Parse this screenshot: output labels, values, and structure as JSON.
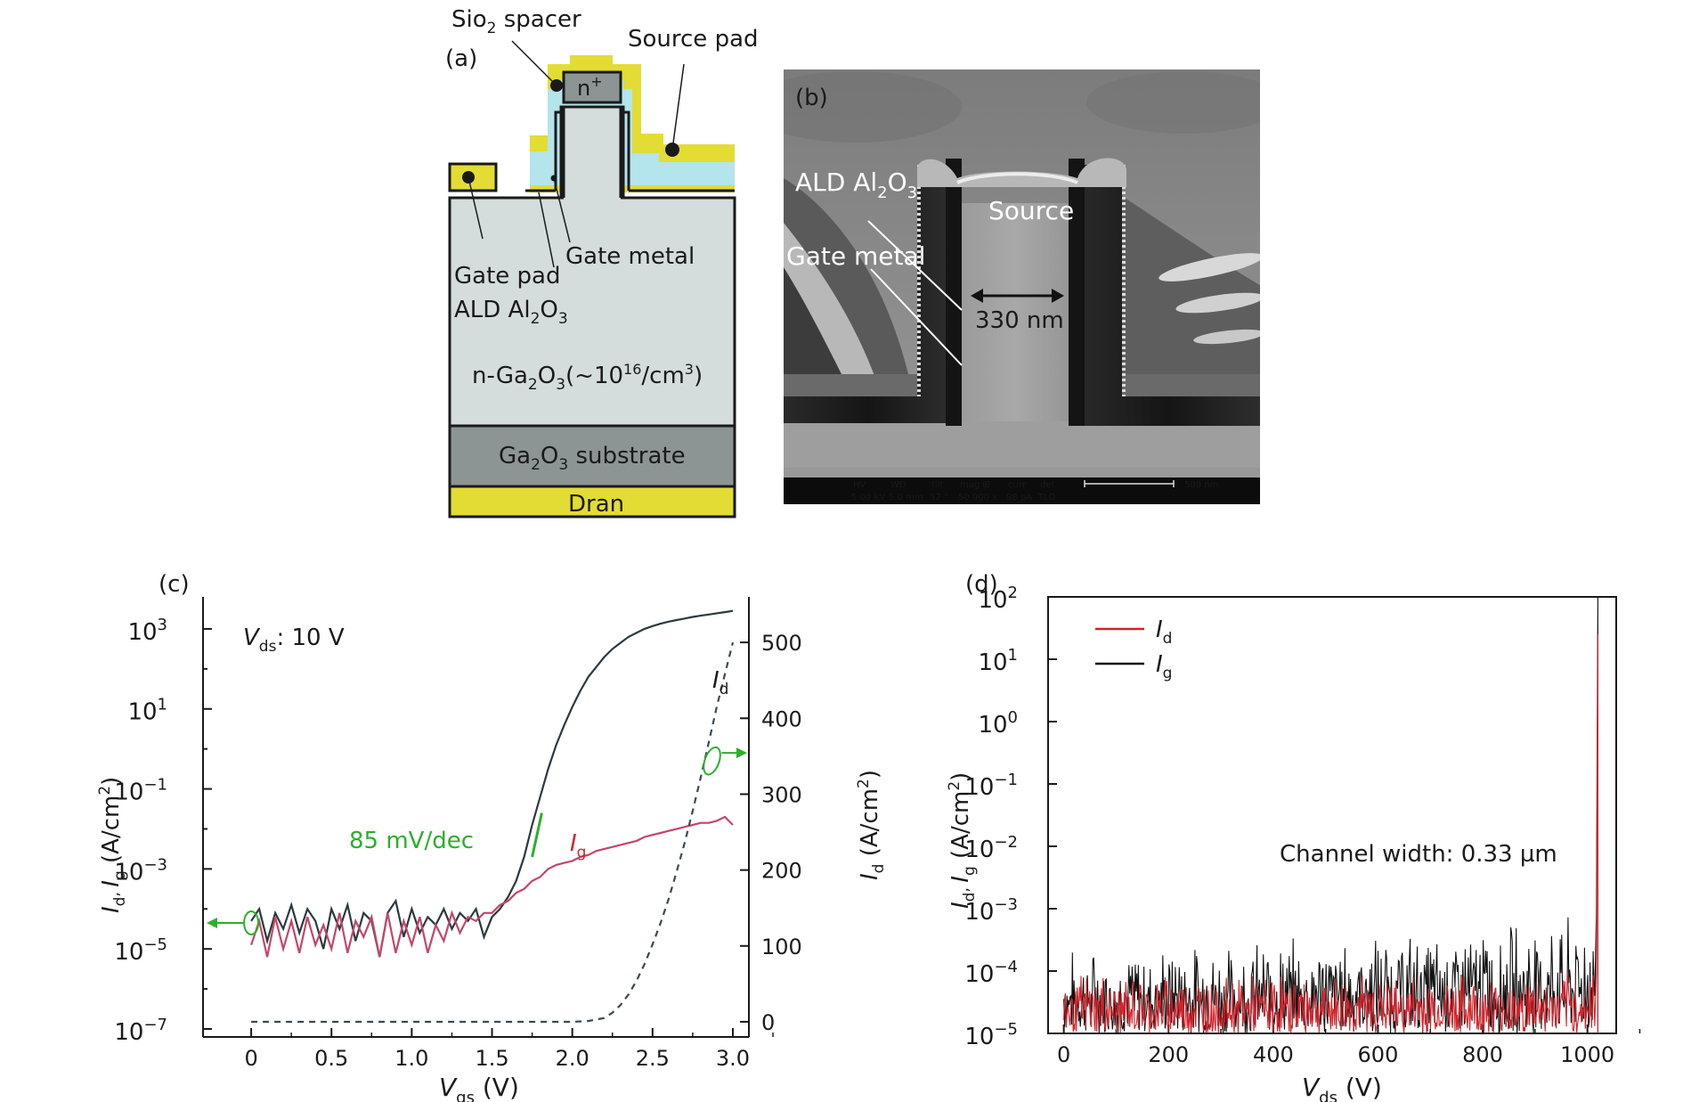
{
  "panel_a": {
    "label": "(a)",
    "sio2_spacer": "Sio",
    "sio2_sub": "2",
    "sio2_rest": " spacer",
    "source_pad": "Source pad",
    "n_plus": "n",
    "n_plus_sup": "+",
    "gate_pad": "Gate pad",
    "gate_metal": "Gate metal",
    "ald": "ALD Al",
    "ald_sub1": "2",
    "ald_mid": "O",
    "ald_sub2": "3",
    "drift_pre": "n-Ga",
    "drift_s1": "2",
    "drift_mid": "O",
    "drift_s2": "3",
    "drift_paren": "(~10",
    "drift_sup": "16",
    "drift_unit": "/cm",
    "drift_sup2": "3",
    "drift_close": ")",
    "substrate_pre": "Ga",
    "substrate_s1": "2",
    "substrate_mid": "O",
    "substrate_s2": "3",
    "substrate_post": " substrate",
    "drain": "Dran",
    "colors": {
      "metal": "#e2dc34",
      "oxide": "#b4e4ec",
      "semiconductor": "#d4dcdc",
      "substrate": "#8c9494",
      "outline": "#1a1a1a"
    }
  },
  "panel_b": {
    "label": "(b)",
    "ald": "ALD Al",
    "ald_sub1": "2",
    "ald_mid": "O",
    "ald_sub2": "3",
    "source": "Source",
    "gate_metal": "Gate metal",
    "dimension": "330 nm",
    "info_headers": [
      "HV",
      "WD",
      "tilt",
      "mag ⊞",
      "curr",
      "det"
    ],
    "info_values": [
      "5.00 kV",
      "5.0 mm",
      "52 °",
      "50 000 x",
      "98 pA",
      "TLD"
    ],
    "scale_bar": "500 nm"
  },
  "panel_c": {
    "label": "(c)",
    "annotation_vds_italic": "V",
    "annotation_vds_sub": "ds",
    "annotation_vds_val": ": 10 V",
    "slope_label": "85 mV/dec",
    "id_curve_label": "I",
    "id_curve_sub": "d",
    "ig_curve_label": "I",
    "ig_curve_sub": "g",
    "left_ylabel": "I_d, I_g (A/cm^2)",
    "right_ylabel": "I_d (A/cm^2)",
    "xlabel_italic": "V",
    "xlabel_sub": "gs",
    "xlabel_unit": " (V)"
  },
  "panel_d": {
    "label": "(d)",
    "legend_id": "I",
    "legend_id_sub": "d",
    "legend_ig": "I",
    "legend_ig_sub": "g",
    "annotation": "Channel width: 0.33 µm",
    "ylabel": "I_d, I_g (A/cm^2)",
    "xlabel_italic": "V",
    "xlabel_sub": "ds",
    "xlabel_unit": " (V)"
  },
  "chart_data": [
    {
      "type": "line",
      "title": "(c)",
      "xlabel": "Vgs (V)",
      "ylabel": "Id, Ig (A/cm2)",
      "y2label": "Id (A/cm2)",
      "xlim": [
        -0.3,
        3.1
      ],
      "xticks": [
        0,
        0.5,
        1.0,
        1.5,
        2.0,
        2.5,
        3.0
      ],
      "xtick_labels": [
        "0",
        "0.5",
        "1.0",
        "1.5",
        "2.0",
        "2.5",
        "3.0"
      ],
      "ylim_log": [
        -7.2,
        3.8
      ],
      "yticks_log": [
        3,
        1,
        -1,
        -3,
        -5,
        -7
      ],
      "ytick_labels": [
        "10",
        "10",
        "10",
        "10",
        "10",
        "10"
      ],
      "ytick_exps": [
        "3",
        "1",
        "−1",
        "−3",
        "−5",
        "−7"
      ],
      "y2lim": [
        -20,
        560
      ],
      "y2ticks": [
        0,
        100,
        200,
        300,
        400,
        500
      ],
      "y2tick_labels": [
        "0",
        "100",
        "200",
        "300",
        "400",
        "500"
      ],
      "series": [
        {
          "name": "Id (log)",
          "axis": "left-log",
          "style": "solid",
          "color": "#2a3a40",
          "x": [
            0,
            0.05,
            0.1,
            0.15,
            0.2,
            0.25,
            0.3,
            0.35,
            0.4,
            0.45,
            0.5,
            0.55,
            0.6,
            0.65,
            0.7,
            0.75,
            0.8,
            0.85,
            0.9,
            0.95,
            1.0,
            1.05,
            1.1,
            1.15,
            1.2,
            1.25,
            1.3,
            1.35,
            1.4,
            1.45,
            1.5,
            1.55,
            1.6,
            1.65,
            1.7,
            1.75,
            1.8,
            1.85,
            1.9,
            1.95,
            2.0,
            2.05,
            2.1,
            2.15,
            2.2,
            2.25,
            2.3,
            2.35,
            2.4,
            2.45,
            2.5,
            2.55,
            2.6,
            2.65,
            2.7,
            2.75,
            2.8,
            2.85,
            2.9,
            2.95,
            3.0
          ],
          "y": [
            -4.3,
            -4.0,
            -4.8,
            -4.1,
            -4.5,
            -3.9,
            -4.6,
            -4.0,
            -4.3,
            -5.0,
            -4.0,
            -4.5,
            -3.9,
            -4.8,
            -4.1,
            -4.3,
            -5.2,
            -4.1,
            -3.8,
            -4.7,
            -4.0,
            -4.6,
            -4.2,
            -4.4,
            -4.0,
            -4.5,
            -4.1,
            -4.3,
            -4.0,
            -4.7,
            -4.2,
            -4.0,
            -3.7,
            -3.3,
            -2.7,
            -1.9,
            -1.2,
            -0.5,
            0.1,
            0.6,
            1.05,
            1.45,
            1.8,
            2.05,
            2.3,
            2.5,
            2.65,
            2.8,
            2.9,
            3.0,
            3.07,
            3.13,
            3.18,
            3.22,
            3.26,
            3.3,
            3.33,
            3.36,
            3.39,
            3.42,
            3.45
          ]
        },
        {
          "name": "Ig",
          "axis": "left-log",
          "style": "solid",
          "color": "#c4466a",
          "x": [
            0,
            0.05,
            0.1,
            0.15,
            0.2,
            0.25,
            0.3,
            0.35,
            0.4,
            0.45,
            0.5,
            0.55,
            0.6,
            0.65,
            0.7,
            0.75,
            0.8,
            0.85,
            0.9,
            0.95,
            1.0,
            1.05,
            1.1,
            1.15,
            1.2,
            1.25,
            1.3,
            1.35,
            1.4,
            1.45,
            1.5,
            1.55,
            1.6,
            1.65,
            1.7,
            1.75,
            1.8,
            1.85,
            1.9,
            1.95,
            2.0,
            2.05,
            2.1,
            2.15,
            2.2,
            2.25,
            2.3,
            2.35,
            2.4,
            2.45,
            2.5,
            2.55,
            2.6,
            2.65,
            2.7,
            2.75,
            2.8,
            2.85,
            2.9,
            2.95,
            3.0
          ],
          "y": [
            -4.9,
            -4.3,
            -5.2,
            -4.2,
            -5.0,
            -4.3,
            -5.1,
            -4.2,
            -4.9,
            -4.4,
            -5.0,
            -4.1,
            -5.1,
            -4.3,
            -4.7,
            -4.2,
            -5.2,
            -4.1,
            -5.1,
            -4.3,
            -4.9,
            -4.2,
            -5.1,
            -4.4,
            -4.8,
            -4.1,
            -4.6,
            -4.2,
            -4.3,
            -4.1,
            -4.1,
            -3.9,
            -3.8,
            -3.6,
            -3.5,
            -3.3,
            -3.2,
            -3.0,
            -2.9,
            -2.85,
            -2.8,
            -2.7,
            -2.65,
            -2.55,
            -2.5,
            -2.45,
            -2.4,
            -2.35,
            -2.3,
            -2.2,
            -2.15,
            -2.1,
            -2.05,
            -2.0,
            -1.95,
            -1.9,
            -1.85,
            -1.85,
            -1.8,
            -1.7,
            -1.9
          ]
        },
        {
          "name": "Id (linear)",
          "axis": "right-linear",
          "style": "dashed",
          "color": "#3a4a52",
          "x": [
            0,
            0.5,
            1.0,
            1.5,
            2.0,
            2.1,
            2.2,
            2.25,
            2.3,
            2.35,
            2.4,
            2.45,
            2.5,
            2.55,
            2.6,
            2.65,
            2.7,
            2.75,
            2.8,
            2.85,
            2.9,
            2.95,
            3.0
          ],
          "y": [
            0,
            0,
            0,
            0,
            0,
            1,
            5,
            12,
            22,
            36,
            54,
            76,
            102,
            130,
            162,
            198,
            236,
            278,
            322,
            368,
            415,
            458,
            500
          ]
        }
      ]
    },
    {
      "type": "line",
      "title": "(d)",
      "xlabel": "Vds (V)",
      "ylabel": "Id, Ig (A/cm2)",
      "xlim": [
        -30,
        1055
      ],
      "xticks": [
        0,
        200,
        400,
        600,
        800,
        1000
      ],
      "xtick_labels": [
        "0",
        "200",
        "400",
        "600",
        "800",
        "1000"
      ],
      "ylim_log": [
        -5,
        2
      ],
      "yticks_log": [
        2,
        1,
        0,
        -1,
        -2,
        -3,
        -4,
        -5
      ],
      "ytick_labels": [
        "10",
        "10",
        "10",
        "10",
        "10",
        "10",
        "10",
        "10"
      ],
      "ytick_exps": [
        "2",
        "1",
        "0",
        "−1",
        "−2",
        "−3",
        "−4",
        "−5"
      ],
      "breakdown_voltage": 1020,
      "series": [
        {
          "name": "Ig",
          "color": "#111111",
          "x": [
            0,
            100,
            200,
            300,
            400,
            500,
            600,
            700,
            800,
            900,
            1000,
            1015,
            1020
          ],
          "y_upper": [
            -3.6,
            -3.6,
            -3.55,
            -3.5,
            -3.45,
            -3.4,
            -3.35,
            -3.3,
            -3.2,
            -3.1,
            -3.05,
            -3.1,
            2.0
          ],
          "y_lower": [
            -5,
            -5,
            -5,
            -5,
            -5,
            -5,
            -5,
            -5,
            -5,
            -5,
            -5,
            -5,
            -5
          ]
        },
        {
          "name": "Id",
          "color": "#d2232a",
          "x": [
            0,
            100,
            200,
            300,
            400,
            500,
            600,
            700,
            800,
            900,
            1000,
            1015,
            1020
          ],
          "y_upper": [
            -4.0,
            -4.0,
            -4.0,
            -4.0,
            -4.0,
            -4.0,
            -4.0,
            -4.0,
            -4.0,
            -4.0,
            -4.0,
            -4.0,
            1.4
          ],
          "y_lower": [
            -5,
            -5,
            -5,
            -5,
            -5,
            -5,
            -5,
            -5,
            -5,
            -5,
            -5,
            -5,
            -5
          ]
        }
      ]
    }
  ]
}
